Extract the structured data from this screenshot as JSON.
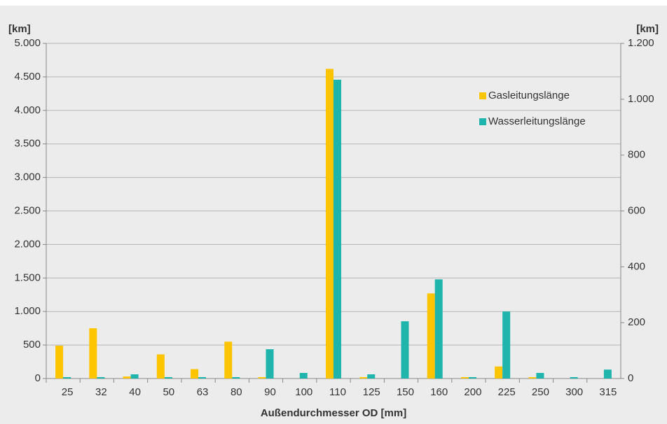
{
  "chart_data": {
    "type": "bar",
    "y_label": "[km]",
    "y2_label": "[km]",
    "x_label": "Außendurchmesser OD [mm]",
    "categories": [
      "25",
      "32",
      "40",
      "50",
      "63",
      "80",
      "90",
      "100",
      "110",
      "125",
      "150",
      "160",
      "200",
      "225",
      "250",
      "300",
      "315"
    ],
    "series": [
      {
        "name": "Gasleitungslänge",
        "color": "#fdc400",
        "axis": "y",
        "values": [
          490,
          750,
          30,
          360,
          140,
          550,
          20,
          0,
          4620,
          20,
          0,
          1270,
          20,
          180,
          20,
          0,
          0
        ]
      },
      {
        "name": "Wasserleitungslänge",
        "color": "#1fb5ad",
        "axis": "y2",
        "values": [
          5,
          5,
          15,
          5,
          5,
          5,
          105,
          20,
          1070,
          15,
          205,
          355,
          5,
          240,
          20,
          5,
          32
        ]
      }
    ],
    "ylim": [
      0,
      5000
    ],
    "yticks": [
      0,
      500,
      {
        "value": 1000,
        "label": "1.000"
      },
      {
        "value": 1500,
        "label": "1.500"
      },
      {
        "value": 2000,
        "label": "2.000"
      },
      {
        "value": 2500,
        "label": "2.500"
      },
      {
        "value": 3000,
        "label": "3.000"
      },
      {
        "value": 3500,
        "label": "3.500"
      },
      {
        "value": 4000,
        "label": "4.000"
      },
      {
        "value": 4500,
        "label": "4.500"
      },
      {
        "value": 5000,
        "label": "5.000"
      }
    ],
    "y2lim": [
      0,
      1200
    ],
    "y2ticks": [
      0,
      200,
      400,
      600,
      800,
      {
        "value": 1000,
        "label": "1.000"
      },
      {
        "value": 1200,
        "label": "1.200"
      }
    ],
    "grid": true,
    "legend": "upper right"
  }
}
